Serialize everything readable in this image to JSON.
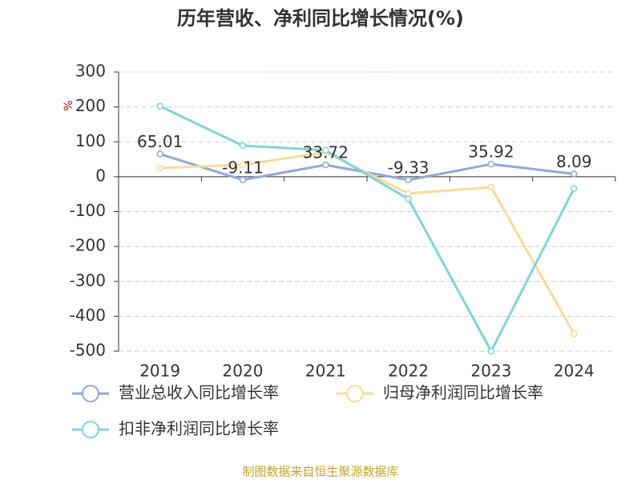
{
  "chart_data": {
    "type": "line",
    "title": "历年营收、净利同比增长情况(%)",
    "y_label": "%",
    "categories": [
      "2019",
      "2020",
      "2021",
      "2022",
      "2023",
      "2024"
    ],
    "series": [
      {
        "name": "营业总收入同比增长率",
        "color": "#8fa8d8",
        "values": [
          65.01,
          -9.11,
          33.72,
          -9.33,
          35.92,
          8.09
        ],
        "labels": true
      },
      {
        "name": "归母净利润同比增长率",
        "color": "#f9d99a",
        "values": [
          25,
          34,
          70,
          -48,
          -30,
          -450
        ]
      },
      {
        "name": "扣非净利润同比增长率",
        "color": "#80d4d4",
        "values": [
          202,
          89,
          76,
          -64,
          -500,
          -34
        ]
      }
    ],
    "ylim": [
      -500,
      300
    ],
    "yticks": [
      300,
      200,
      100,
      0,
      -100,
      -200,
      -300,
      -400,
      -500
    ],
    "grid": true,
    "source": "制图数据来自恒生聚源数据库"
  }
}
